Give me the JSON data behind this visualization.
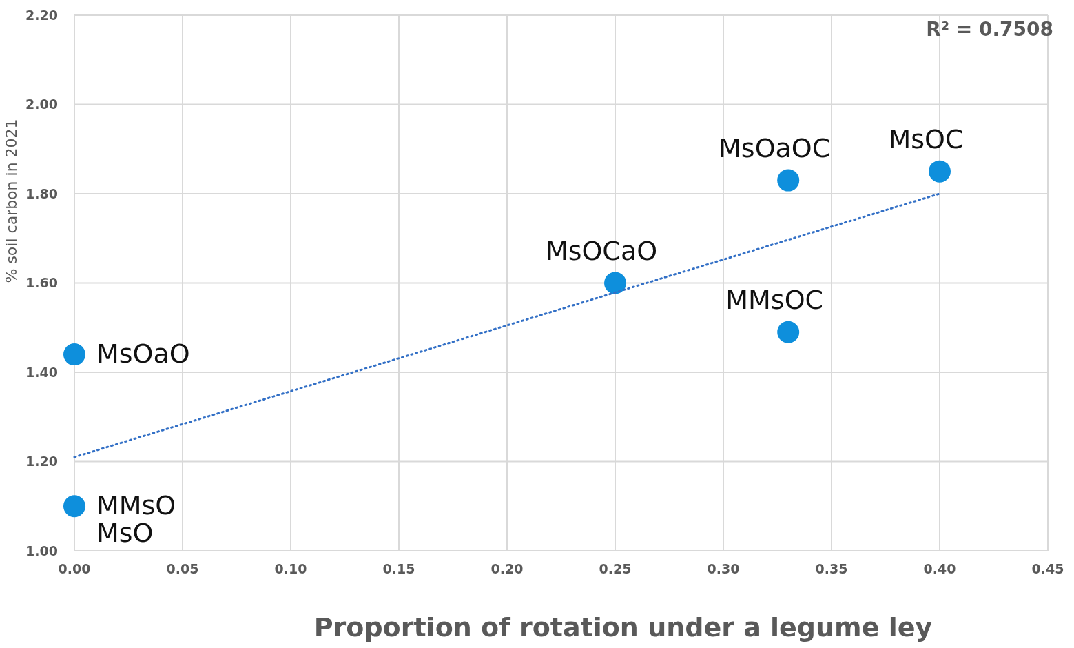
{
  "chart_data": {
    "type": "scatter",
    "xlabel": "Proportion of  rotation under a legume ley",
    "ylabel": "% soil carbon in 2021",
    "xlim": [
      0,
      0.45
    ],
    "xticks": [
      {
        "value": 0,
        "label": "0.00"
      },
      {
        "value": 0.05,
        "label": "0.05"
      },
      {
        "value": 0.1,
        "label": "0.10"
      },
      {
        "value": 0.15,
        "label": "0.15"
      },
      {
        "value": 0.2,
        "label": "0.20"
      },
      {
        "value": 0.25,
        "label": "0.25"
      },
      {
        "value": 0.3,
        "label": "0.30"
      },
      {
        "value": 0.35,
        "label": "0.35"
      },
      {
        "value": 0.4,
        "label": "0.40"
      },
      {
        "value": 0.45,
        "label": "0.45"
      }
    ],
    "ylim": [
      1,
      2.2
    ],
    "yticks": [
      {
        "value": 1,
        "label": "1.00"
      },
      {
        "value": 1.2,
        "label": "1.20"
      },
      {
        "value": 1.4,
        "label": "1.40"
      },
      {
        "value": 1.6,
        "label": "1.60"
      },
      {
        "value": 1.8,
        "label": "1.80"
      },
      {
        "value": 2,
        "label": "2.00"
      },
      {
        "value": 2.2,
        "label": "2.20"
      }
    ],
    "grid": true,
    "annotations": [
      "R² = 0.7508"
    ],
    "series": [
      {
        "type": "scatter",
        "color": "#0e8fdc",
        "marker": "circle",
        "x": [
          0,
          0,
          0.25,
          0.33,
          0.33,
          0.4
        ],
        "values": [
          1.44,
          1.1,
          1.6,
          1.83,
          1.49,
          1.85
        ],
        "value_labels": [
          "MsOaO",
          "MMsO\nMsO",
          "MsOCaO",
          "MsOaOC",
          "MMsOC",
          "MsOC"
        ]
      },
      {
        "type": "line",
        "color": "#3370c6",
        "marker": "none",
        "line_style": "dotted",
        "x": [
          0,
          0.4
        ],
        "values": [
          1.21,
          1.8
        ]
      }
    ]
  }
}
